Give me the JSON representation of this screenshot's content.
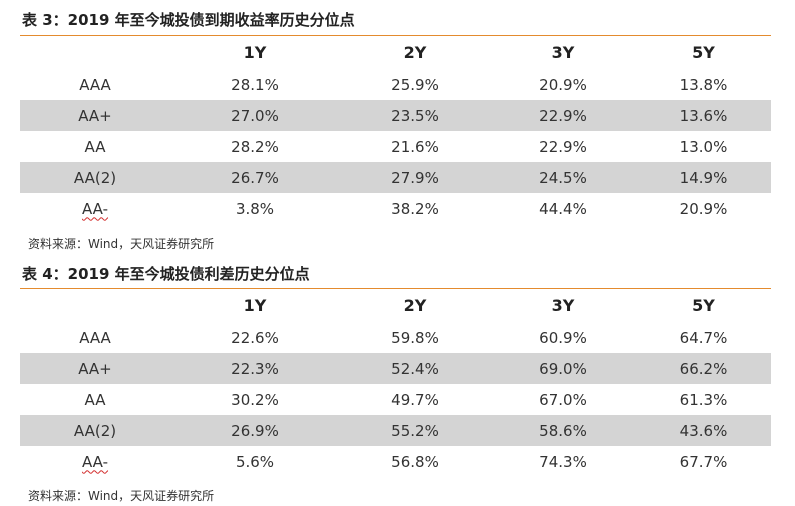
{
  "tables": [
    {
      "title": "表 3：2019 年至今城投债到期收益率历史分位点",
      "columns": [
        "",
        "1Y",
        "2Y",
        "3Y",
        "5Y"
      ],
      "rows": [
        {
          "rating": "AAA",
          "values": [
            "28.1%",
            "25.9%",
            "20.9%",
            "13.8%"
          ]
        },
        {
          "rating": "AA+",
          "values": [
            "27.0%",
            "23.5%",
            "22.9%",
            "13.6%"
          ]
        },
        {
          "rating": "AA",
          "values": [
            "28.2%",
            "21.6%",
            "22.9%",
            "13.0%"
          ]
        },
        {
          "rating": "AA(2)",
          "values": [
            "26.7%",
            "27.9%",
            "24.5%",
            "14.9%"
          ]
        },
        {
          "rating": "AA-",
          "values": [
            "3.8%",
            "38.2%",
            "44.4%",
            "20.9%"
          ]
        }
      ],
      "source": "资料来源：Wind，天风证券研究所"
    },
    {
      "title": "表 4：2019 年至今城投债利差历史分位点",
      "columns": [
        "",
        "1Y",
        "2Y",
        "3Y",
        "5Y"
      ],
      "rows": [
        {
          "rating": "AAA",
          "values": [
            "22.6%",
            "59.8%",
            "60.9%",
            "64.7%"
          ]
        },
        {
          "rating": "AA+",
          "values": [
            "22.3%",
            "52.4%",
            "69.0%",
            "66.2%"
          ]
        },
        {
          "rating": "AA",
          "values": [
            "30.2%",
            "49.7%",
            "67.0%",
            "61.3%"
          ]
        },
        {
          "rating": "AA(2)",
          "values": [
            "26.9%",
            "55.2%",
            "58.6%",
            "43.6%"
          ]
        },
        {
          "rating": "AA-",
          "values": [
            "5.6%",
            "56.8%",
            "74.3%",
            "67.7%"
          ]
        }
      ],
      "source": "资料来源：Wind，天风证券研究所"
    }
  ],
  "colors": {
    "rule": "#e48b2e",
    "shade": "#d4d4d4",
    "spellcheck_underline": "#d22c2c"
  }
}
